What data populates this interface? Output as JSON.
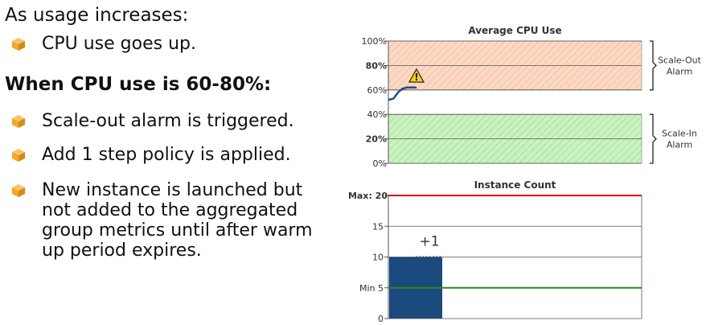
{
  "slide": {
    "intro": "As usage increases:",
    "intro_bullet": "CPU use goes up.",
    "heading": "When CPU use is 60-80%:",
    "bullets": [
      "Scale-out alarm is triggered.",
      "Add 1 step policy is applied.",
      "New instance is launched but not added to the aggregated group metrics until after warm up period expires."
    ]
  },
  "colors": {
    "bullet_icon": "#f5a623",
    "high_zone": "#fbd9c4",
    "low_zone": "#c9f2c0",
    "alarm_red": "#e00000",
    "min_green": "#2a8a1a",
    "bar_blue": "#1a4a7e",
    "cpu_line": "#1f4f82"
  },
  "chart_data": [
    {
      "type": "line",
      "title": "Average CPU Use",
      "y_ticks": [
        "100%",
        "80%",
        "60%",
        "40%",
        "20%",
        "0%"
      ],
      "ylim": [
        0,
        100
      ],
      "highlight_ticks": {
        "80%": "#e00000",
        "20%": "#2a8a1a"
      },
      "zones": [
        {
          "from": 60,
          "to": 100,
          "label": "Scale-Out Alarm",
          "color": "#fbd9c4"
        },
        {
          "from": 0,
          "to": 40,
          "label": "Scale-In Alarm",
          "color": "#c9f2c0"
        }
      ],
      "series": [
        {
          "x": [
            0,
            0.5,
            1,
            1.5,
            2,
            3
          ],
          "y": [
            52,
            53,
            58,
            61,
            62,
            62
          ]
        }
      ],
      "warning_icon": "warning-triangle-icon"
    },
    {
      "type": "bar",
      "title": "Instance Count",
      "y_ticks": [
        "20",
        "15",
        "10",
        "Min 5",
        "0"
      ],
      "ylim": [
        0,
        20
      ],
      "max_label": "Max: 20",
      "max_value": 20,
      "min_label": "Min 5",
      "min_value": 5,
      "values": [
        10
      ],
      "pending": {
        "value": 1,
        "label": "+1"
      }
    }
  ]
}
